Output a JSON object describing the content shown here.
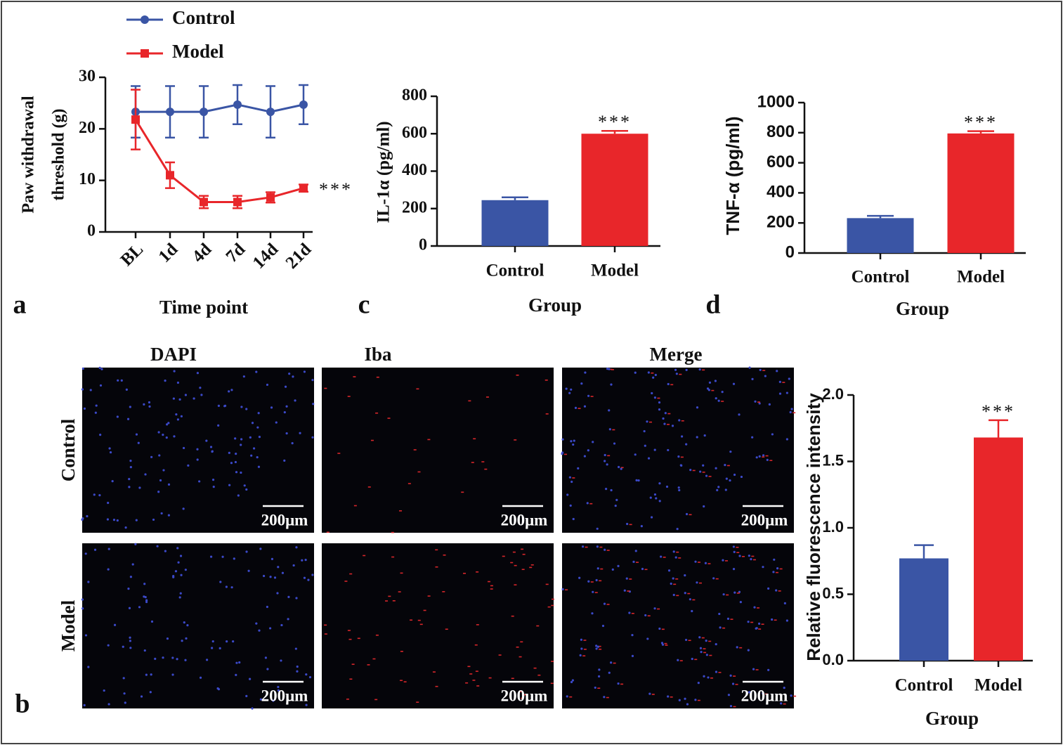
{
  "chart_data": [
    {
      "type": "line",
      "panel_label": "a",
      "ylabel": [
        "Paw withdrawal",
        "threshold (g)"
      ],
      "xlabel": "Time point",
      "categories": [
        "BL",
        "1d",
        "4d",
        "7d",
        "14d",
        "21d"
      ],
      "series": [
        {
          "name": "Control",
          "color": "#3a55a5",
          "values": [
            23.3,
            23.3,
            23.3,
            24.7,
            23.3,
            24.7
          ],
          "errors": [
            5,
            5,
            5,
            3.8,
            5,
            3.8
          ]
        },
        {
          "name": "Model",
          "color": "#e8262a",
          "values": [
            21.8,
            11,
            5.8,
            5.8,
            6.7,
            8.5
          ],
          "errors": [
            5.8,
            2.5,
            1.2,
            1.2,
            1,
            0.7
          ]
        }
      ],
      "ylim": [
        0,
        30
      ],
      "yticks": [
        0,
        10,
        20,
        30
      ],
      "annotation": "***"
    },
    {
      "type": "bar",
      "panel_label": "c",
      "ylabel": "IL-1α (pg/ml)",
      "xlabel": "Group",
      "categories": [
        "Control",
        "Model"
      ],
      "values": [
        245,
        600
      ],
      "errors": [
        15,
        15
      ],
      "colors": [
        "#3a55a5",
        "#e8262a"
      ],
      "ylim": [
        0,
        800
      ],
      "yticks": [
        0,
        200,
        400,
        600,
        800
      ],
      "annotation": "***"
    },
    {
      "type": "bar",
      "panel_label": "d",
      "ylabel": "TNF-α (pg/ml)",
      "xlabel": "Group",
      "categories": [
        "Control",
        "Model"
      ],
      "values": [
        232,
        795
      ],
      "errors": [
        15,
        15
      ],
      "colors": [
        "#3a55a5",
        "#e8262a"
      ],
      "ylim": [
        0,
        1000
      ],
      "yticks": [
        0,
        200,
        400,
        600,
        800,
        1000
      ],
      "annotation": "***"
    },
    {
      "type": "bar",
      "ylabel": "Relative fluorescence intensity",
      "xlabel": "Group",
      "categories": [
        "Control",
        "Model"
      ],
      "values": [
        0.77,
        1.68
      ],
      "errors": [
        0.1,
        0.13
      ],
      "colors": [
        "#3a55a5",
        "#e8262a"
      ],
      "ylim": [
        0,
        2
      ],
      "yticks": [
        {
          "value": 0,
          "label": "0.0"
        },
        0.5,
        {
          "value": 1,
          "label": "1.0"
        },
        1.5,
        {
          "value": 2,
          "label": "2.0"
        }
      ],
      "annotation": "***"
    }
  ],
  "images": {
    "panel_label": "b",
    "columns": [
      "DAPI",
      "Iba",
      "Merge"
    ],
    "rows": [
      "Control",
      "Model"
    ],
    "scale_bar": "200μm"
  }
}
